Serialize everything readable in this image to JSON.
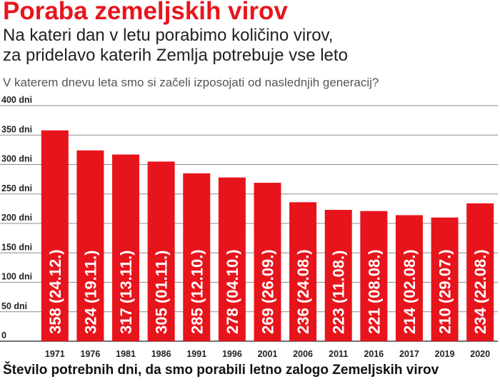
{
  "header": {
    "title": "Poraba zemeljskih virov",
    "subtitle_line1": "Na kateri dan v letu porabimo količino virov,",
    "subtitle_line2": "za pridelavo katerih Zemlja potrebuje vse leto",
    "question": "V katerem dnevu leta smo si začeli izposojati od naslednjih generacij?"
  },
  "footer": {
    "caption": "Število potrebnih dni, da smo porabili letno zalogo Zemeljskih virov"
  },
  "colors": {
    "bar": "#e8141c",
    "title": "#e8141c",
    "grid": "#8c8c8c",
    "bar_text": "#ffffff"
  },
  "chart_data": {
    "type": "bar",
    "categories": [
      "1971",
      "1976",
      "1981",
      "1986",
      "1991",
      "1996",
      "2001",
      "2006",
      "2011",
      "2016",
      "2017",
      "2019",
      "2020"
    ],
    "values": [
      358,
      324,
      317,
      305,
      285,
      278,
      269,
      236,
      223,
      221,
      214,
      210,
      234
    ],
    "bar_labels": [
      "358 (24.12.)",
      "324 (19.11.)",
      "317 (13.11.)",
      "305 (01.11.)",
      "285 (12.10.)",
      "278 (04.10.)",
      "269 (26.09.)",
      "236 (24.08.)",
      "223 (11.08.)",
      "221 (08.08.)",
      "214 (02.08.)",
      "210 (29.07.)",
      "234 (22.08.)"
    ],
    "yticks": [
      0,
      50,
      100,
      150,
      200,
      250,
      300,
      350,
      400
    ],
    "ytick_labels": [
      "0",
      "50 dni",
      "100 dni",
      "150 dni",
      "200 dni",
      "250 dni",
      "300 dni",
      "350 dni",
      "400 dni"
    ],
    "ylim": [
      0,
      400
    ],
    "grid": true
  }
}
